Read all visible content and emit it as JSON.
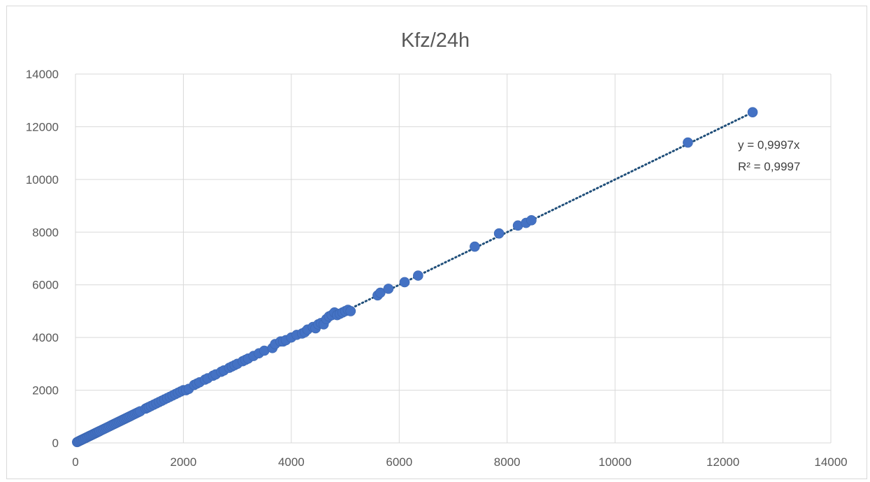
{
  "chart_data": {
    "type": "scatter",
    "title": "Kfz/24h",
    "xlabel": "",
    "ylabel": "",
    "xlim": [
      0,
      14000
    ],
    "ylim": [
      0,
      14000
    ],
    "xticks": [
      0,
      2000,
      4000,
      6000,
      8000,
      10000,
      12000,
      14000
    ],
    "yticks": [
      0,
      2000,
      4000,
      6000,
      8000,
      10000,
      12000,
      14000
    ],
    "x_tick_labels": [
      "0",
      "2000",
      "4000",
      "6000",
      "8000",
      "10000",
      "12000",
      "14000"
    ],
    "y_tick_labels": [
      "0",
      "2000",
      "4000",
      "6000",
      "8000",
      "10000",
      "12000",
      "14000"
    ],
    "grid": true,
    "legend": "none",
    "colors": {
      "points": "#4472c4",
      "trendline": "#1f4e79",
      "grid": "#d9d9d9",
      "text": "#595959"
    },
    "trendline": {
      "slope": 0.9997,
      "equation": "y = 0,9997x",
      "r_squared": "R² = 0,9997",
      "x_range": [
        0,
        12550
      ]
    },
    "series": [
      {
        "x": [
          30,
          50,
          70,
          90,
          110,
          130,
          150,
          170,
          190,
          210,
          230,
          250,
          270,
          290,
          310,
          330,
          350,
          370,
          390,
          410,
          430,
          450,
          480,
          510,
          540,
          570,
          600,
          630,
          660,
          690,
          720,
          750,
          780,
          810,
          840,
          870,
          900,
          930,
          960,
          990,
          1020,
          1050,
          1080,
          1110,
          1140,
          1170,
          1200,
          1300,
          1330,
          1360,
          1400,
          1450,
          1500,
          1550,
          1600,
          1650,
          1700,
          1750,
          1800,
          1850,
          1900,
          1950,
          2000,
          2050,
          2100,
          2200,
          2250,
          2300,
          2400,
          2450,
          2550,
          2600,
          2700,
          2750,
          2850,
          2900,
          2950,
          3000,
          3100,
          3150,
          3200,
          3300,
          3400,
          3500,
          3650,
          3700,
          3800,
          3850,
          3900,
          4000,
          4100,
          4200,
          4250,
          4300,
          4400,
          4450,
          4500,
          4550,
          4600,
          4650,
          4700,
          4750,
          4800,
          4850,
          4900,
          4950,
          5000,
          5050,
          5100,
          5600,
          5650,
          5800,
          6100,
          6350,
          7400,
          7850,
          8200,
          8350,
          8450,
          11350,
          12550
        ],
        "y": [
          30,
          50,
          70,
          90,
          110,
          130,
          150,
          170,
          190,
          210,
          230,
          250,
          270,
          290,
          310,
          330,
          350,
          370,
          390,
          410,
          430,
          450,
          480,
          510,
          540,
          570,
          600,
          630,
          660,
          690,
          720,
          750,
          780,
          810,
          840,
          870,
          900,
          930,
          960,
          990,
          1020,
          1050,
          1080,
          1110,
          1140,
          1170,
          1200,
          1300,
          1330,
          1360,
          1400,
          1450,
          1500,
          1550,
          1600,
          1650,
          1700,
          1750,
          1800,
          1850,
          1900,
          1950,
          2000,
          2000,
          2050,
          2200,
          2250,
          2300,
          2400,
          2450,
          2550,
          2600,
          2700,
          2750,
          2850,
          2900,
          2950,
          3000,
          3100,
          3150,
          3200,
          3300,
          3400,
          3500,
          3600,
          3750,
          3850,
          3850,
          3900,
          4000,
          4100,
          4150,
          4200,
          4300,
          4400,
          4350,
          4500,
          4550,
          4500,
          4700,
          4800,
          4850,
          4950,
          4850,
          4900,
          4950,
          5000,
          5050,
          5000,
          5600,
          5700,
          5850,
          6100,
          6350,
          7450,
          7950,
          8250,
          8350,
          8450,
          11400,
          12550
        ]
      }
    ]
  }
}
